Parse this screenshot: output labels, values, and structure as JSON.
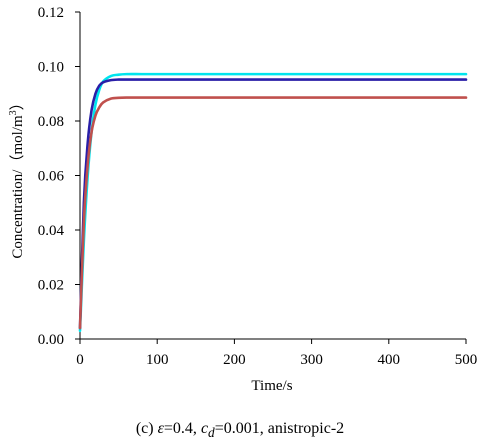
{
  "chart_data": {
    "type": "line",
    "xlabel": "Time/s",
    "ylabel_parts": {
      "base": "Concentration/（mol/m",
      "sup": "3",
      "close": "）"
    },
    "xlim": [
      0,
      500
    ],
    "ylim": [
      0,
      0.12
    ],
    "x_ticks": [
      "0",
      "100",
      "200",
      "300",
      "400",
      "500"
    ],
    "y_ticks": [
      "0.00",
      "0.02",
      "0.04",
      "0.06",
      "0.08",
      "0.10",
      "0.12"
    ],
    "grid": false,
    "legend": "none",
    "series": [
      {
        "color": "#00e5ee",
        "x": [
          0,
          5,
          10,
          15,
          20,
          25,
          30,
          40,
          50,
          60,
          80,
          100,
          200,
          300,
          400,
          500
        ],
        "y": [
          0.003,
          0.036,
          0.06,
          0.076,
          0.086,
          0.0915,
          0.0945,
          0.0965,
          0.097,
          0.0972,
          0.0972,
          0.0972,
          0.0972,
          0.0972,
          0.0972,
          0.0972
        ]
      },
      {
        "color": "#2a1fa8",
        "x": [
          0,
          5,
          10,
          15,
          20,
          25,
          30,
          40,
          50,
          60,
          80,
          100,
          200,
          300,
          400,
          500
        ],
        "y": [
          0.004,
          0.05,
          0.072,
          0.084,
          0.09,
          0.093,
          0.0942,
          0.095,
          0.0952,
          0.0952,
          0.0952,
          0.0952,
          0.0952,
          0.0952,
          0.0952,
          0.0952
        ]
      },
      {
        "color": "#c0504d",
        "x": [
          0,
          5,
          10,
          15,
          20,
          25,
          30,
          40,
          50,
          60,
          80,
          100,
          200,
          300,
          400,
          500
        ],
        "y": [
          0.004,
          0.043,
          0.064,
          0.076,
          0.082,
          0.085,
          0.0868,
          0.0882,
          0.0885,
          0.0886,
          0.0886,
          0.0886,
          0.0886,
          0.0886,
          0.0886,
          0.0886
        ]
      }
    ]
  },
  "caption": {
    "open": "(c) ",
    "eps": "ε",
    "eps_val": "=0.4, ",
    "c": "c",
    "c_sub": "d",
    "c_val": "=0.001, anistropic-2"
  }
}
